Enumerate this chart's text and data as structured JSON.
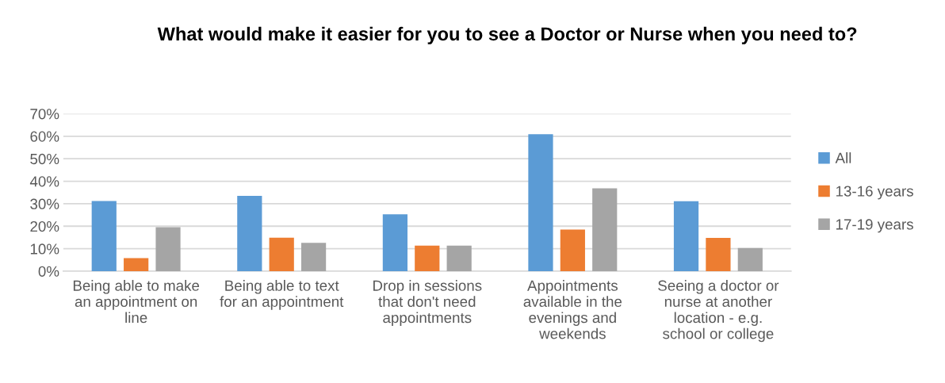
{
  "chart_data": {
    "type": "bar",
    "title": "What would make it easier for you to see a Doctor or Nurse when you need to?",
    "categories": [
      "Being able to make an appointment on line",
      "Being able to text for an appointment",
      "Drop in sessions that don't need appointments",
      "Appointments available in the evenings and weekends",
      "Seeing a doctor or nurse at another location - e.g. school or college"
    ],
    "series": [
      {
        "name": "All",
        "color": "#5b9bd5",
        "values": [
          31.2,
          33.5,
          25.3,
          60.9,
          31.1
        ]
      },
      {
        "name": "13-16 years",
        "color": "#ed7d31",
        "values": [
          5.8,
          14.9,
          11.4,
          18.5,
          14.8
        ]
      },
      {
        "name": "17-19 years",
        "color": "#a5a5a5",
        "values": [
          19.6,
          12.6,
          11.4,
          36.8,
          10.3
        ]
      }
    ],
    "ylim": [
      0,
      70
    ],
    "yticks": [
      {
        "value": 0,
        "label": "0%"
      },
      {
        "value": 10,
        "label": "10%"
      },
      {
        "value": 20,
        "label": "20%"
      },
      {
        "value": 30,
        "label": "30%"
      },
      {
        "value": 40,
        "label": "40%"
      },
      {
        "value": 50,
        "label": "50%"
      },
      {
        "value": 60,
        "label": "60%"
      },
      {
        "value": 70,
        "label": "70%"
      }
    ],
    "grid": "y",
    "legend": "right"
  }
}
